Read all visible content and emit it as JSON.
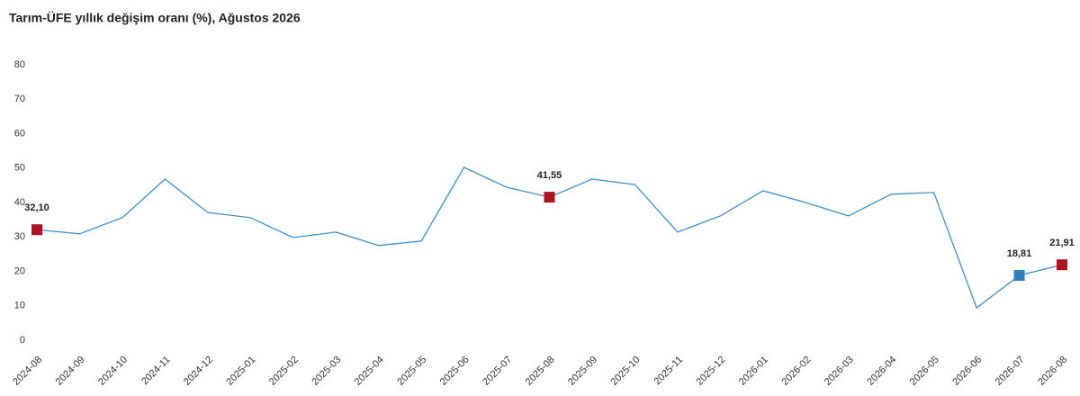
{
  "chart_data": {
    "type": "line",
    "title": "Tarım-ÜFE yıllık değişim oranı (%), Ağustos 2026",
    "categories": [
      "2024-08",
      "2024-09",
      "2024-10",
      "2024-11",
      "2024-12",
      "2025-01",
      "2025-02",
      "2025-03",
      "2025-04",
      "2025-05",
      "2025-06",
      "2025-07",
      "2025-08",
      "2025-09",
      "2025-10",
      "2025-11",
      "2025-12",
      "2026-01",
      "2026-02",
      "2026-03",
      "2026-04",
      "2026-05",
      "2026-06",
      "2026-07",
      "2026-08"
    ],
    "values": [
      32.1,
      30.9,
      35.6,
      46.8,
      37.1,
      35.6,
      29.8,
      31.4,
      27.5,
      28.8,
      50.2,
      44.4,
      41.55,
      46.8,
      45.2,
      31.4,
      36.1,
      43.4,
      40.0,
      36.1,
      42.4,
      42.9,
      9.4,
      18.81,
      21.91
    ],
    "value_labels": [
      "32,10",
      null,
      null,
      null,
      null,
      null,
      null,
      null,
      null,
      null,
      null,
      null,
      "41,55",
      null,
      null,
      null,
      null,
      null,
      null,
      null,
      null,
      null,
      null,
      "18,81",
      "21,91"
    ],
    "marker_colors": [
      "#b2121f",
      null,
      null,
      null,
      null,
      null,
      null,
      null,
      null,
      null,
      null,
      null,
      "#b2121f",
      null,
      null,
      null,
      null,
      null,
      null,
      null,
      null,
      null,
      null,
      "#2f7dbd",
      "#b2121f"
    ],
    "color": "#3d8fcf",
    "ylim": [
      0,
      80
    ],
    "yticks": [
      0,
      10,
      20,
      30,
      40,
      50,
      60,
      70,
      80
    ],
    "grid": false
  }
}
